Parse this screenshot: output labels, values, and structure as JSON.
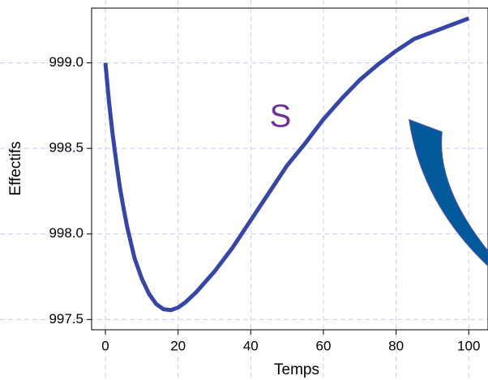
{
  "chart_data": {
    "type": "line",
    "x_label": "Temps",
    "y_label": "Effectifs",
    "annotations": [
      "S"
    ],
    "x": [
      0,
      1,
      2,
      3,
      4,
      5,
      6,
      8,
      10,
      12,
      14,
      16,
      18,
      20,
      22,
      25,
      30,
      35,
      40,
      45,
      50,
      55,
      60,
      65,
      70,
      75,
      80,
      85,
      90,
      95,
      100
    ],
    "series": [
      {
        "name": "S",
        "color": "#3545a8",
        "values": [
          999.0,
          998.77,
          998.58,
          998.42,
          998.27,
          998.15,
          998.04,
          997.86,
          997.74,
          997.65,
          997.59,
          997.56,
          997.555,
          997.57,
          997.6,
          997.66,
          997.78,
          997.92,
          998.08,
          998.24,
          998.4,
          998.53,
          998.67,
          998.79,
          998.9,
          998.99,
          999.07,
          999.14,
          999.18,
          999.22,
          999.26
        ]
      }
    ],
    "xlim": [
      -3.8,
      105.3
    ],
    "xticks": [
      0,
      20,
      40,
      60,
      80,
      100
    ],
    "ylim": [
      997.44,
      999.32
    ],
    "yticks": [
      {
        "value": 997.5,
        "label": "997.5"
      },
      {
        "value": 998.0,
        "label": "998.0"
      },
      {
        "value": 998.5,
        "label": "998.5"
      },
      {
        "value": 999.0,
        "label": "999.0"
      }
    ],
    "grid": true
  }
}
